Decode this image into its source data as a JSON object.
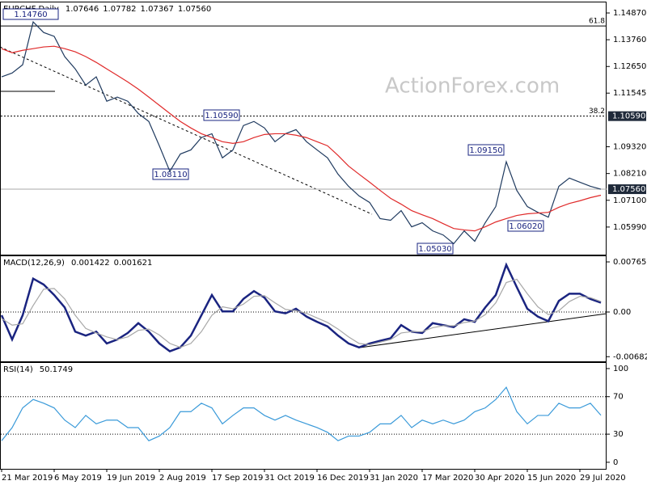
{
  "chart_data": [
    {
      "type": "line",
      "title": "EURCHF,Daily",
      "readout": [
        "1.07646",
        "1.07782",
        "1.07367",
        "1.07560"
      ],
      "watermark": "ActionForex.com",
      "categories": [
        "21 Mar 2019",
        null,
        null,
        null,
        null,
        "6 May 2019",
        null,
        null,
        null,
        null,
        "19 Jun 2019",
        null,
        null,
        null,
        null,
        "2 Aug 2019",
        null,
        null,
        null,
        null,
        "17 Sep 2019",
        null,
        null,
        null,
        null,
        "31 Oct 2019",
        null,
        null,
        null,
        null,
        "16 Dec 2019",
        null,
        null,
        null,
        null,
        "31 Jan 2020",
        null,
        null,
        null,
        null,
        "17 Mar 2020",
        null,
        null,
        null,
        null,
        "30 Apr 2020",
        null,
        null,
        null,
        null,
        "15 Jun 2020",
        null,
        null,
        null,
        null,
        "29 Jul 2020",
        null,
        null
      ],
      "series": [
        {
          "color": "#1f3a5f",
          "values": [
            1.1222,
            1.1238,
            1.1272,
            1.145,
            1.1406,
            1.139,
            1.1306,
            1.1255,
            1.1188,
            1.1222,
            1.1121,
            1.1138,
            1.1121,
            1.107,
            1.1037,
            1.0936,
            1.083,
            1.0902,
            1.0919,
            1.097,
            1.0986,
            1.0886,
            1.0919,
            1.102,
            1.1037,
            1.101,
            1.0953,
            1.0986,
            1.1003,
            1.0953,
            1.0919,
            1.0886,
            1.0818,
            1.0768,
            1.0728,
            1.0701,
            1.0634,
            1.0627,
            1.0667,
            1.06,
            1.0617,
            1.0583,
            1.0566,
            1.053,
            1.0583,
            1.054,
            1.0617,
            1.0684,
            1.087,
            1.0751,
            1.0684,
            1.066,
            1.064,
            1.0768,
            1.0802,
            1.0785,
            1.0768,
            1.0756
          ]
        },
        {
          "color": "#e02a2a",
          "values": [
            1.1339,
            1.1322,
            1.1332,
            1.1339,
            1.1346,
            1.1349,
            1.1339,
            1.1326,
            1.1306,
            1.1282,
            1.1255,
            1.1228,
            1.1201,
            1.1171,
            1.1138,
            1.1104,
            1.107,
            1.1037,
            1.101,
            1.0986,
            1.097,
            1.0953,
            1.0946,
            1.0953,
            1.097,
            1.0983,
            1.0986,
            1.0986,
            1.098,
            1.097,
            1.0953,
            1.0936,
            1.0896,
            1.0852,
            1.0818,
            1.0785,
            1.0751,
            1.0718,
            1.0694,
            1.0667,
            1.065,
            1.0634,
            1.0613,
            1.0593,
            1.0587,
            1.0583,
            1.06,
            1.062,
            1.0634,
            1.0647,
            1.0654,
            1.0657,
            1.066,
            1.0681,
            1.0697,
            1.0708,
            1.0721,
            1.0731
          ]
        }
      ],
      "ylim": [
        1.04846,
        1.15307
      ],
      "yticks": [
        {
          "value": 1.1487,
          "label": "1.14870"
        },
        {
          "value": 1.1376,
          "label": "1.13760"
        },
        {
          "value": 1.1265,
          "label": "1.12650"
        },
        1.11545,
        {
          "value": 1.0932,
          "label": "1.09320"
        },
        {
          "value": 1.0821,
          "label": "1.08210"
        },
        {
          "value": 1.071,
          "label": "1.07100"
        },
        {
          "value": 1.0599,
          "label": "1.05990"
        }
      ],
      "levels": [
        {
          "value": 1.1433,
          "label": "61.8"
        },
        {
          "value": 1.1059,
          "label": "38.2"
        }
      ],
      "price_labels": [
        {
          "value": 1.1059,
          "label": "1.10590"
        },
        {
          "value": 1.0756,
          "label": "1.07560"
        }
      ],
      "annotations": [
        "1.14760",
        "1.10590",
        "1.08110",
        "1.09150",
        "1.06020",
        "1.05030"
      ]
    },
    {
      "type": "line",
      "title": "MACD(12,26,9)",
      "readout": [
        0.001422,
        0.001621
      ],
      "series": [
        {
          "color": "#1a2480",
          "values": [
            -0.0005,
            -0.0042,
            -0.0005,
            0.0051,
            0.0042,
            0.0026,
            0.0007,
            -0.003,
            -0.0036,
            -0.003,
            -0.0048,
            -0.0042,
            -0.0032,
            -0.0017,
            -0.003,
            -0.0048,
            -0.006,
            -0.0054,
            -0.0036,
            -0.0005,
            0.0026,
            0.0001,
            0.0001,
            0.002,
            0.0032,
            0.0022,
            0.0001,
            -0.0002,
            0.0005,
            -0.0007,
            -0.0015,
            -0.0022,
            -0.0036,
            -0.0048,
            -0.0054,
            -0.0048,
            -0.0044,
            -0.004,
            -0.002,
            -0.003,
            -0.0032,
            -0.0017,
            -0.002,
            -0.0023,
            -0.0011,
            -0.0015,
            0.0007,
            0.0026,
            0.0072,
            0.0038,
            0.0005,
            -0.0007,
            -0.0014,
            0.0017,
            0.0028,
            0.0028,
            0.002,
            0.001422
          ]
        },
        {
          "color": "#a8a8a8",
          "values": [
            -0.001,
            -0.002,
            -0.0018,
            0.001,
            0.0035,
            0.0036,
            0.002,
            -0.0005,
            -0.0025,
            -0.0032,
            -0.0038,
            -0.0042,
            -0.0038,
            -0.0028,
            -0.0026,
            -0.0035,
            -0.0048,
            -0.0054,
            -0.0048,
            -0.003,
            -0.0005,
            0.0008,
            0.0005,
            0.0012,
            0.0024,
            0.0025,
            0.0014,
            0.0004,
            0.0002,
            -0.0002,
            -0.0009,
            -0.0016,
            -0.0026,
            -0.0038,
            -0.0048,
            -0.005,
            -0.0046,
            -0.0042,
            -0.0032,
            -0.003,
            -0.003,
            -0.0024,
            -0.0021,
            -0.0021,
            -0.0016,
            -0.0014,
            -0.0004,
            0.0014,
            0.0045,
            0.005,
            0.0028,
            0.0008,
            -0.0004,
            0.0002,
            0.0016,
            0.0024,
            0.0022,
            0.001621
          ]
        }
      ],
      "ylim": [
        -0.00753,
        0.00852
      ],
      "yticks": [
        0.007655,
        {
          "value": 0,
          "label": "0.00"
        },
        -0.006822
      ],
      "reference_lines": [
        0
      ]
    },
    {
      "type": "line",
      "title": "RSI(14)",
      "readout": [
        50.1749
      ],
      "series": [
        {
          "color": "#3a9ad9",
          "values": [
            23,
            37,
            58,
            67,
            63,
            58,
            45,
            37,
            50,
            41,
            45,
            45,
            37,
            37,
            23,
            28,
            37,
            54,
            54,
            63,
            58,
            41,
            50,
            58,
            58,
            50,
            45,
            50,
            45,
            41,
            37,
            32,
            23,
            28,
            28,
            32,
            41,
            41,
            50,
            37,
            45,
            41,
            45,
            41,
            45,
            54,
            58,
            67,
            80,
            54,
            41,
            50,
            50,
            63,
            58,
            58,
            63,
            50.1749
          ]
        }
      ],
      "ylim": [
        -7,
        106
      ],
      "yticks": [
        100,
        70,
        30,
        0
      ],
      "reference_lines": [
        70,
        30
      ]
    }
  ]
}
